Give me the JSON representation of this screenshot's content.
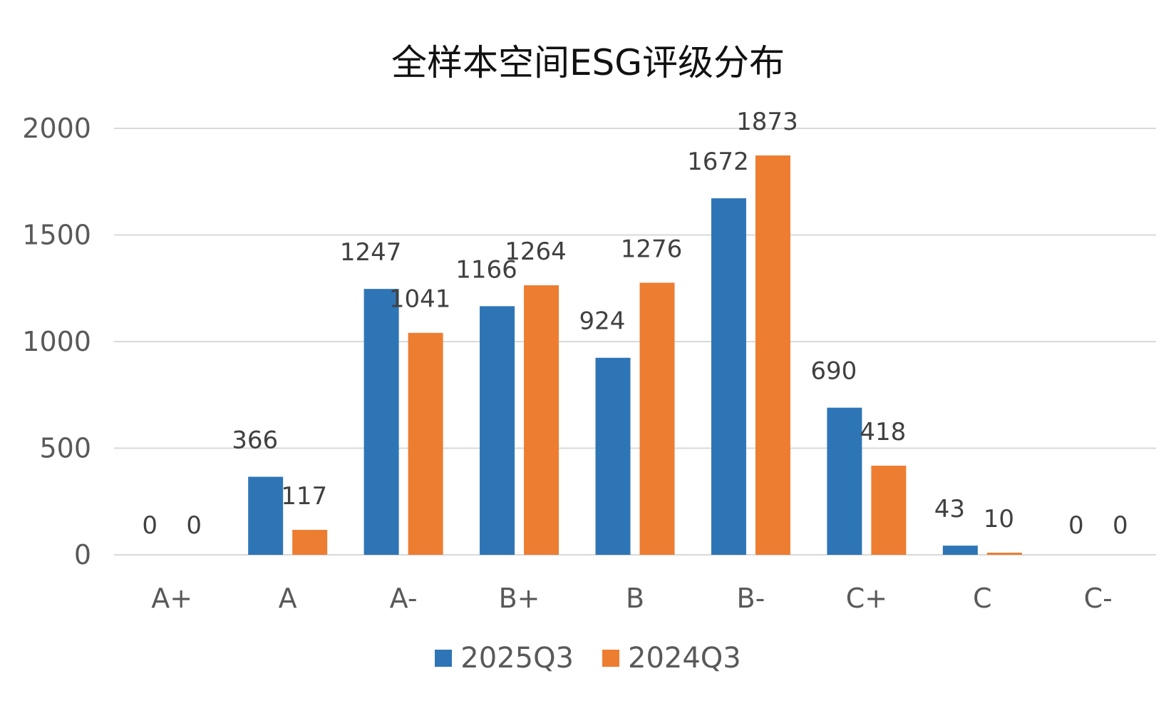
{
  "chart_data": {
    "type": "bar",
    "title": "全样本空间ESG评级分布",
    "categories": [
      "A+",
      "A",
      "A-",
      "B+",
      "B",
      "B-",
      "C+",
      "C",
      "C-"
    ],
    "series": [
      {
        "name": "2025Q3",
        "color": "#2E75B6",
        "values": [
          0,
          366,
          1247,
          1166,
          924,
          1672,
          690,
          43,
          0
        ]
      },
      {
        "name": "2024Q3",
        "color": "#ED7D31",
        "values": [
          0,
          117,
          1041,
          1264,
          1276,
          1873,
          418,
          10,
          0
        ]
      }
    ],
    "ylim": [
      0,
      2000
    ],
    "yticks": [
      "0",
      "500",
      "1000",
      "1500",
      "2000"
    ],
    "grid": true,
    "legend_position": "bottom",
    "gridline_color": "#D9D9D9"
  }
}
